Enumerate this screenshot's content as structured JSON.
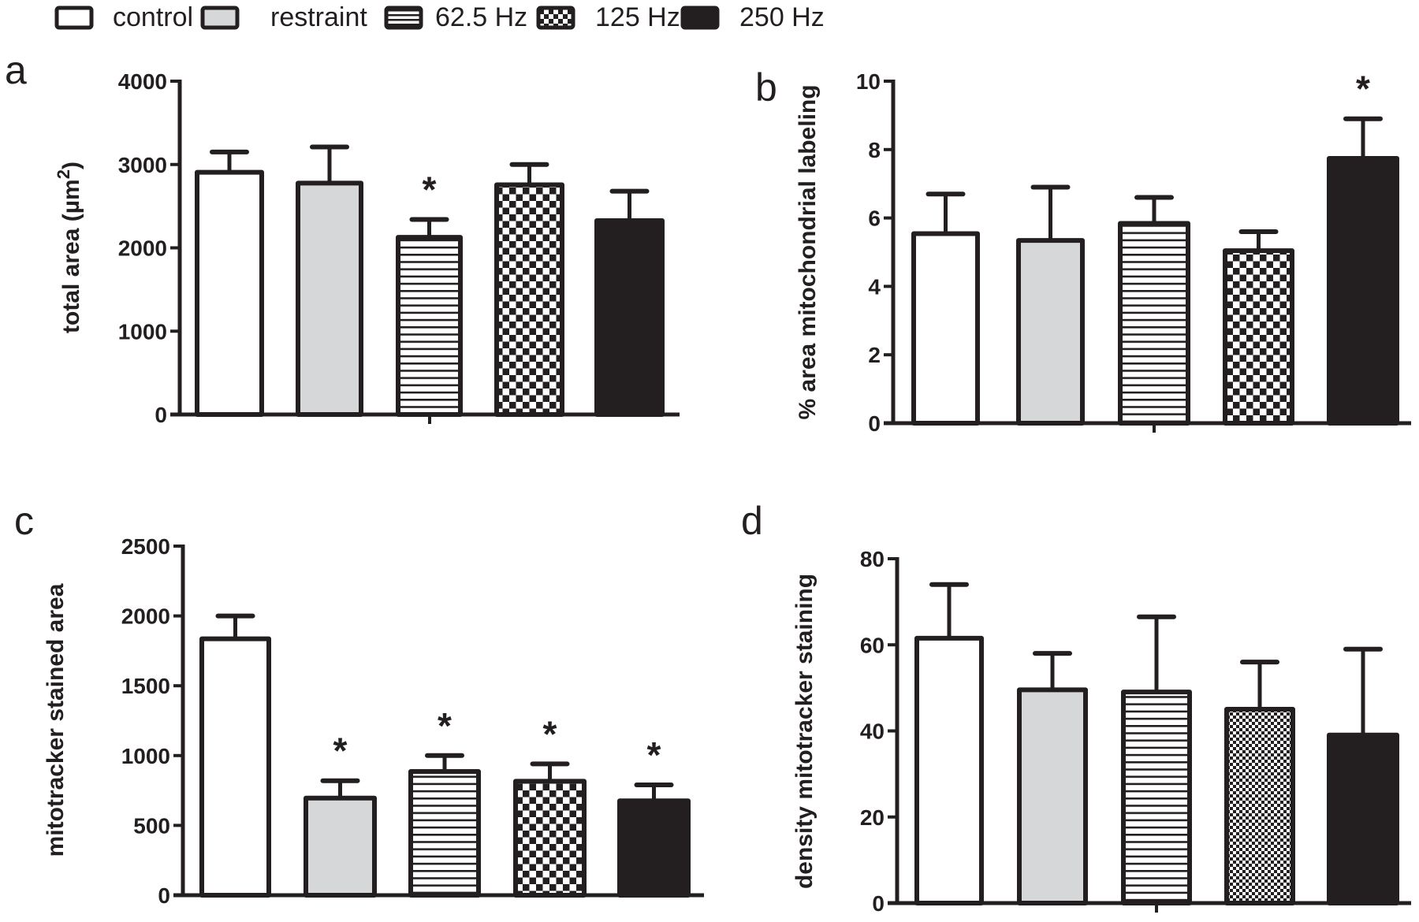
{
  "legend": {
    "items": [
      {
        "key": "control",
        "label": "control",
        "pattern": "white"
      },
      {
        "key": "restraint",
        "label": "restraint",
        "pattern": "gray"
      },
      {
        "key": "hz62",
        "label": "62.5 Hz",
        "pattern": "hlines"
      },
      {
        "key": "hz125",
        "label": "125 Hz",
        "pattern": "checker"
      },
      {
        "key": "hz250",
        "label": "250 Hz",
        "pattern": "black"
      }
    ]
  },
  "colors": {
    "ink": "#231f20",
    "gray_fill": "#d6d7d9",
    "white_fill": "#ffffff"
  },
  "chart_data": [
    {
      "panel": "a",
      "type": "bar",
      "title": "",
      "xlabel": "",
      "ylabel": "total area (µm²)",
      "ylabel_main": "total area (µm",
      "ylabel_sup": "2",
      "ylabel_end": ")",
      "categories": [
        "control",
        "restraint",
        "62.5 Hz",
        "125 Hz",
        "250 Hz"
      ],
      "values": [
        2930,
        2800,
        2150,
        2780,
        2350
      ],
      "error_upper": [
        3150,
        3210,
        2340,
        3000,
        2680
      ],
      "significant": [
        false,
        false,
        true,
        false,
        false
      ],
      "ylim": [
        0,
        4000
      ],
      "yticks": [
        0,
        1000,
        2000,
        3000,
        4000
      ],
      "ytick_labels": [
        "0",
        "1000",
        "2000",
        "3000",
        "4000"
      ],
      "grid": false,
      "significance_marker": "*"
    },
    {
      "panel": "b",
      "type": "bar",
      "title": "",
      "xlabel": "",
      "ylabel": "% area mitochondrial labeling",
      "categories": [
        "control",
        "restraint",
        "62.5 Hz",
        "125 Hz",
        "250 Hz"
      ],
      "values": [
        5.6,
        5.4,
        5.9,
        5.1,
        7.8
      ],
      "error_upper": [
        6.7,
        6.9,
        6.6,
        5.6,
        8.9
      ],
      "significant": [
        false,
        false,
        false,
        false,
        true
      ],
      "ylim": [
        0,
        10
      ],
      "yticks": [
        0,
        2,
        4,
        6,
        8,
        10
      ],
      "ytick_labels": [
        "0",
        "2",
        "4",
        "6",
        "8",
        "10"
      ],
      "grid": false,
      "significance_marker": "*"
    },
    {
      "panel": "c",
      "type": "bar",
      "title": "",
      "xlabel": "",
      "ylabel": "mitotracker stained area",
      "categories": [
        "control",
        "restraint",
        "62.5 Hz",
        "125 Hz",
        "250 Hz"
      ],
      "values": [
        1850,
        710,
        900,
        830,
        690
      ],
      "error_upper": [
        2000,
        820,
        1000,
        940,
        790
      ],
      "significant": [
        false,
        true,
        true,
        true,
        true
      ],
      "ylim": [
        0,
        2500
      ],
      "yticks": [
        0,
        500,
        1000,
        1500,
        2000,
        2500
      ],
      "ytick_labels": [
        "0",
        "500",
        "1000",
        "1500",
        "2000",
        "2500"
      ],
      "grid": false,
      "significance_marker": "*"
    },
    {
      "panel": "d",
      "type": "bar",
      "title": "",
      "xlabel": "",
      "ylabel": "density mitotracker staining",
      "categories": [
        "control",
        "restraint",
        "62.5 Hz",
        "125 Hz",
        "250 Hz"
      ],
      "values": [
        62,
        50,
        49.5,
        45.5,
        39.5
      ],
      "error_upper": [
        74,
        58,
        66.5,
        56,
        59
      ],
      "significant": [
        false,
        false,
        false,
        false,
        false
      ],
      "ylim": [
        0,
        80
      ],
      "yticks": [
        0,
        20,
        40,
        60,
        80
      ],
      "ytick_labels": [
        "0",
        "20",
        "40",
        "60",
        "80"
      ],
      "grid": false,
      "significance_marker": "*"
    }
  ]
}
